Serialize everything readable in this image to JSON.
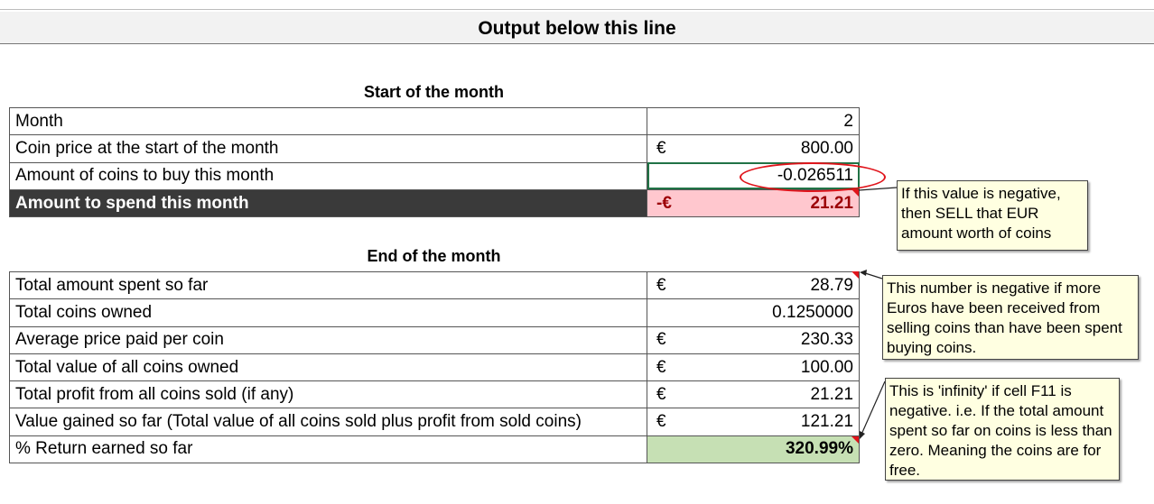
{
  "banner": {
    "title": "Output below this line"
  },
  "start_section": {
    "title": "Start of the month",
    "rows": [
      {
        "label": "Month",
        "currency": "",
        "value": "2"
      },
      {
        "label": "Coin price at the start of the month",
        "currency": "€",
        "value": "800.00"
      },
      {
        "label": "Amount of coins to buy this month",
        "currency": "",
        "value": "-0.026511"
      },
      {
        "label": "Amount to spend this month",
        "currency": "-€",
        "value": "21.21"
      }
    ]
  },
  "end_section": {
    "title": "End of the month",
    "rows": [
      {
        "label": "Total amount spent so far",
        "currency": "€",
        "value": "28.79"
      },
      {
        "label": "Total coins owned",
        "currency": "",
        "value": "0.1250000"
      },
      {
        "label": "Average price paid per coin",
        "currency": "€",
        "value": "230.33"
      },
      {
        "label": "Total value of all coins owned",
        "currency": "€",
        "value": "100.00"
      },
      {
        "label": "Total profit from all coins sold (if any)",
        "currency": "€",
        "value": "21.21"
      },
      {
        "label": "Value gained so far (Total value of all coins sold plus profit from sold coins)",
        "currency": "€",
        "value": "121.21"
      },
      {
        "label": "% Return earned so far",
        "currency": "",
        "value": "320.99%"
      }
    ]
  },
  "comments": {
    "negative_sell": "If this value is negative, then SELL that EUR amount worth of coins",
    "negative_received": "This number is negative if more Euros have been received from selling coins than have been spent buying coins.",
    "infinity": "This is 'infinity' if cell F11 is negative. i.e. If the total amount spent so far on coins is less than zero. Meaning the coins are for free."
  },
  "colors": {
    "highlight_red_bg": "#ffc7ce",
    "highlight_red_text": "#9c0006",
    "highlight_green_bg": "#c6e0b4",
    "dark_label_bg": "#3a3a3a",
    "comment_bg": "#ffffe1",
    "ellipse": "#e0141b"
  }
}
